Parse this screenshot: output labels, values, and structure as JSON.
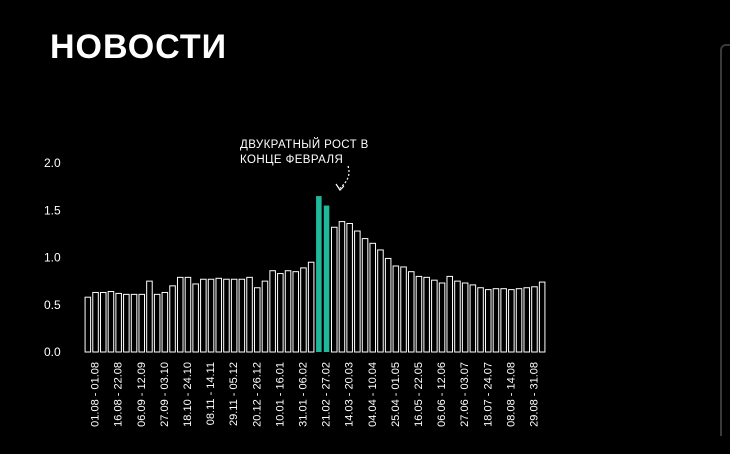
{
  "page": {
    "title": "НОВОСТИ"
  },
  "annotation": {
    "line1": "ДВУКРАТНЫЙ РОСТ В",
    "line2": "КОНЦЕ ФЕВРАЛЯ"
  },
  "colors": {
    "background": "#000000",
    "bar_stroke": "#ffffff",
    "highlight": "#1fb89a",
    "text": "#ffffff"
  },
  "chart_data": {
    "type": "bar",
    "title": "",
    "xlabel": "",
    "ylabel": "",
    "ylim": [
      0,
      2.0
    ],
    "y_ticks": [
      "0.0",
      "0.5",
      "1.0",
      "1.5",
      "2.0"
    ],
    "grid": false,
    "x_tick_labels": [
      "01.08 - 01.08",
      "16.08 - 22.08",
      "06.09 - 12.09",
      "27.09 - 03.10",
      "18.10 - 24.10",
      "08.11 - 14.11",
      "29.11 - 05.12",
      "20.12 - 26.12",
      "10.01 - 16.01",
      "31.01 - 06.02",
      "21.02 - 27.02",
      "14.03 - 20.03",
      "04.04 - 10.04",
      "25.04 - 01.05",
      "16.05 - 22.05",
      "06.06 - 12.06",
      "27.06 - 03.07",
      "18.07 - 24.07",
      "08.08 - 14.08",
      "29.08 - 31.08"
    ],
    "values": [
      0.58,
      0.63,
      0.63,
      0.64,
      0.62,
      0.61,
      0.61,
      0.61,
      0.75,
      0.61,
      0.63,
      0.7,
      0.79,
      0.79,
      0.72,
      0.77,
      0.77,
      0.78,
      0.77,
      0.77,
      0.77,
      0.79,
      0.68,
      0.75,
      0.86,
      0.83,
      0.86,
      0.85,
      0.89,
      0.95,
      1.65,
      1.55,
      1.32,
      1.38,
      1.36,
      1.28,
      1.2,
      1.15,
      1.08,
      0.99,
      0.91,
      0.9,
      0.85,
      0.8,
      0.79,
      0.76,
      0.73,
      0.8,
      0.75,
      0.73,
      0.71,
      0.68,
      0.66,
      0.67,
      0.67,
      0.66,
      0.67,
      0.68,
      0.69,
      0.74
    ],
    "highlight_indices": [
      30,
      31
    ]
  }
}
